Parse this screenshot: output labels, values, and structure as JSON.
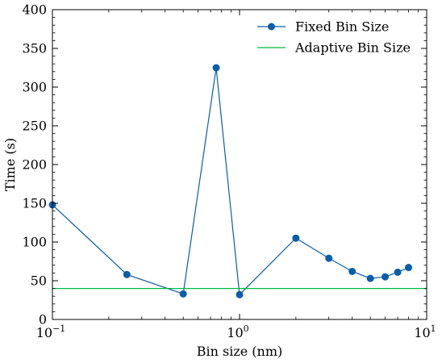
{
  "chart_data": {
    "type": "line",
    "title": "",
    "xlabel": "Bin size (nm)",
    "ylabel": "Time (s)",
    "xscale": "log",
    "xlim": [
      0.1,
      10
    ],
    "ylim": [
      0,
      400
    ],
    "xticks": [
      {
        "value": 0.1,
        "label": "10",
        "exp": "−1"
      },
      {
        "value": 1,
        "label": "10",
        "exp": "0"
      },
      {
        "value": 10,
        "label": "10",
        "exp": "1"
      }
    ],
    "yticks": [
      0,
      50,
      100,
      150,
      200,
      250,
      300,
      350,
      400
    ],
    "grid": false,
    "legend_position": "top-right",
    "series": [
      {
        "name": "Fixed Bin Size",
        "kind": "line-marker",
        "color": "#0C5DA5",
        "x": [
          0.1,
          0.25,
          0.5,
          0.75,
          1.0,
          2.0,
          3.0,
          4.0,
          5.0,
          6.0,
          7.0,
          8.0
        ],
        "y": [
          148,
          58,
          33,
          325,
          32,
          105,
          79,
          62,
          53,
          55,
          61,
          67
        ]
      },
      {
        "name": "Adaptive Bin Size",
        "kind": "hline",
        "color": "#00B945",
        "y": 40
      }
    ]
  }
}
